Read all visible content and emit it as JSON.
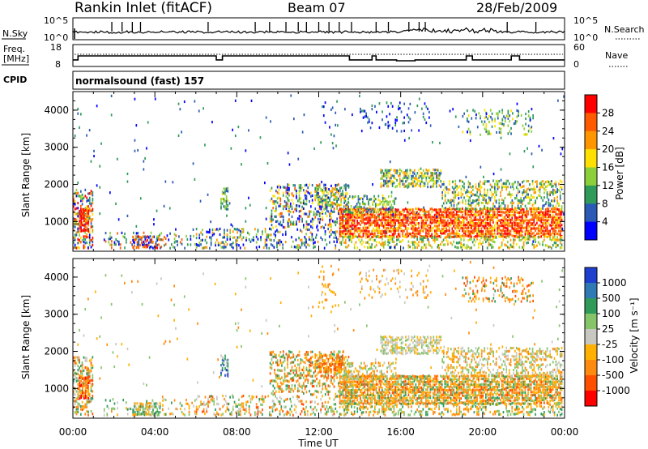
{
  "header": {
    "station": "Rankin Inlet (fitACF)",
    "beam": "Beam 07",
    "date": "28/Feb/2009"
  },
  "nsky_panel": {
    "label": "N.Sky",
    "left_ticks": [
      "10^5",
      "10^0"
    ],
    "right_ticks": [
      "10^5",
      "10^0"
    ],
    "right_label": "N.Search"
  },
  "freq_panel": {
    "label_line1": "Freq.",
    "label_line2": "[MHz]",
    "left_ticks": [
      "18",
      "8"
    ],
    "right_ticks": [
      "60",
      "0"
    ],
    "right_label": "Nave",
    "steps": [
      {
        "t": 0.0,
        "v": 11
      },
      {
        "t": 0.25,
        "v": 12.8
      },
      {
        "t": 7.0,
        "v": 11
      },
      {
        "t": 7.3,
        "v": 12.8
      },
      {
        "t": 13.5,
        "v": 11
      },
      {
        "t": 14.6,
        "v": 12.8
      },
      {
        "t": 14.8,
        "v": 11
      },
      {
        "t": 15.8,
        "v": 10.6
      },
      {
        "t": 16.7,
        "v": 11
      },
      {
        "t": 19.2,
        "v": 12.8
      },
      {
        "t": 19.5,
        "v": 11
      },
      {
        "t": 21.4,
        "v": 12.8
      },
      {
        "t": 21.8,
        "v": 11
      },
      {
        "t": 24.0,
        "v": 11
      }
    ]
  },
  "cpid": {
    "label": "CPID",
    "text": "normalsound (fast) 157"
  },
  "x_axis": {
    "ticks": [
      "00:00",
      "04:00",
      "08:00",
      "12:00",
      "16:00",
      "20:00",
      "00:00"
    ],
    "label": "Time UT"
  },
  "chart_data": [
    {
      "type": "heatmap",
      "title": "Power",
      "ylabel": "Slant Range [km]",
      "ylim": [
        200,
        4500
      ],
      "xlim": [
        0,
        24
      ],
      "y_ticks": [
        "1000",
        "2000",
        "3000",
        "4000"
      ],
      "colorbar": {
        "label": "Power [dB]",
        "ticks": [
          "28",
          "24",
          "20",
          "16",
          "12",
          "8",
          "4"
        ],
        "colors": [
          "#ff0000",
          "#ff5a00",
          "#ff9600",
          "#ffe000",
          "#8ccf3a",
          "#2f9a5a",
          "#2a5ab5",
          "#0000ff"
        ]
      }
    },
    {
      "type": "heatmap",
      "title": "Velocity",
      "ylabel": "Slant Range [km]",
      "ylim": [
        200,
        4500
      ],
      "xlim": [
        0,
        24
      ],
      "y_ticks": [
        "1000",
        "2000",
        "3000",
        "4000"
      ],
      "colorbar": {
        "label": "Velocity [m s⁻¹]",
        "ticks": [
          "1000",
          "500",
          "100",
          "25",
          "-25",
          "-100",
          "-500",
          "-1000"
        ],
        "colors": [
          "#1f3fcf",
          "#2f79b5",
          "#2f9a5a",
          "#86c46a",
          "#c8c8c0",
          "#ffb000",
          "#ff8a10",
          "#ff5000",
          "#ff0000"
        ]
      }
    }
  ]
}
